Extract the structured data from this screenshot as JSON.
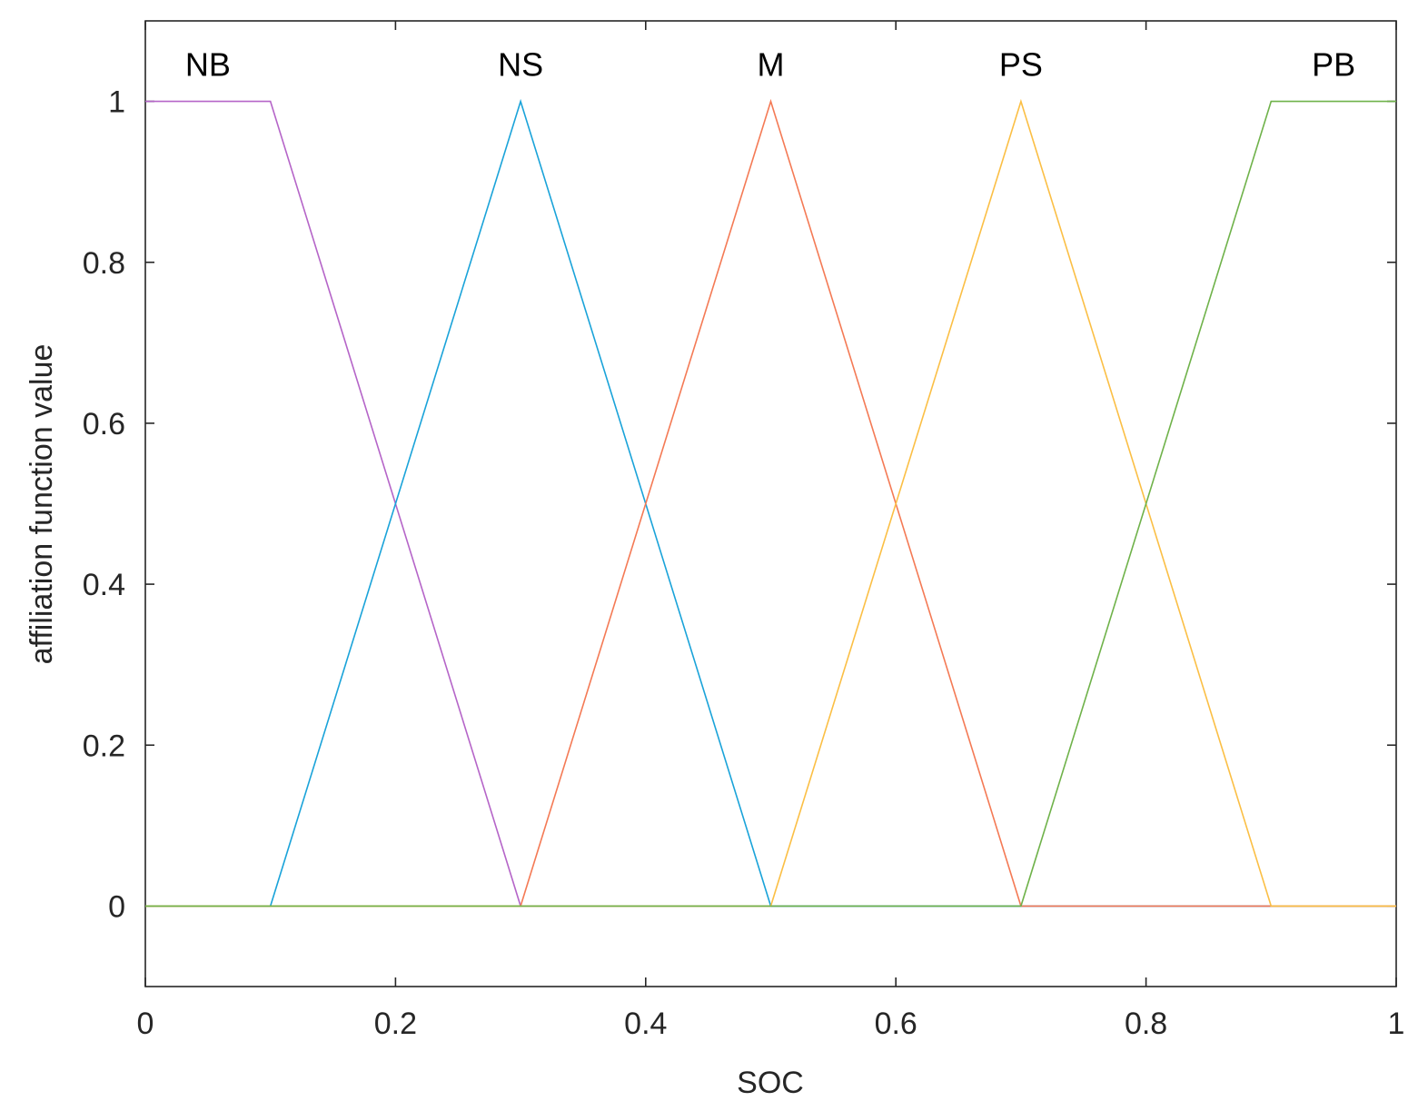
{
  "chart_data": {
    "type": "line",
    "title": "",
    "xlabel": "SOC",
    "ylabel": "affiliation function value",
    "xlim": [
      0,
      1
    ],
    "ylim": [
      -0.1,
      1.1
    ],
    "xticks": [
      0,
      0.2,
      0.4,
      0.6,
      0.8,
      1
    ],
    "xtick_labels": [
      "0",
      "0.2",
      "0.4",
      "0.6",
      "0.8",
      "1"
    ],
    "yticks": [
      0,
      0.2,
      0.4,
      0.6,
      0.8,
      1
    ],
    "ytick_labels": [
      "0",
      "0.2",
      "0.4",
      "0.6",
      "0.8",
      "1"
    ],
    "grid": false,
    "series": [
      {
        "name": "NB",
        "color": "#b565c8",
        "x": [
          0,
          0.1,
          0.3,
          1
        ],
        "y": [
          1,
          1,
          0,
          0
        ],
        "label_x": 0.05
      },
      {
        "name": "NS",
        "color": "#1aa3d9",
        "x": [
          0,
          0.1,
          0.3,
          0.5,
          1
        ],
        "y": [
          0,
          0,
          1,
          0,
          0
        ],
        "label_x": 0.3
      },
      {
        "name": "M",
        "color": "#f47a55",
        "x": [
          0,
          0.3,
          0.5,
          0.7,
          1
        ],
        "y": [
          0,
          0,
          1,
          0,
          0
        ],
        "label_x": 0.5
      },
      {
        "name": "PS",
        "color": "#fbbf45",
        "x": [
          0,
          0.5,
          0.7,
          0.9,
          1
        ],
        "y": [
          0,
          0,
          1,
          0,
          0
        ],
        "label_x": 0.7
      },
      {
        "name": "PB",
        "color": "#6fb24a",
        "x": [
          0,
          0.7,
          0.9,
          1
        ],
        "y": [
          0,
          0,
          1,
          1
        ],
        "label_x": 0.95
      }
    ]
  }
}
